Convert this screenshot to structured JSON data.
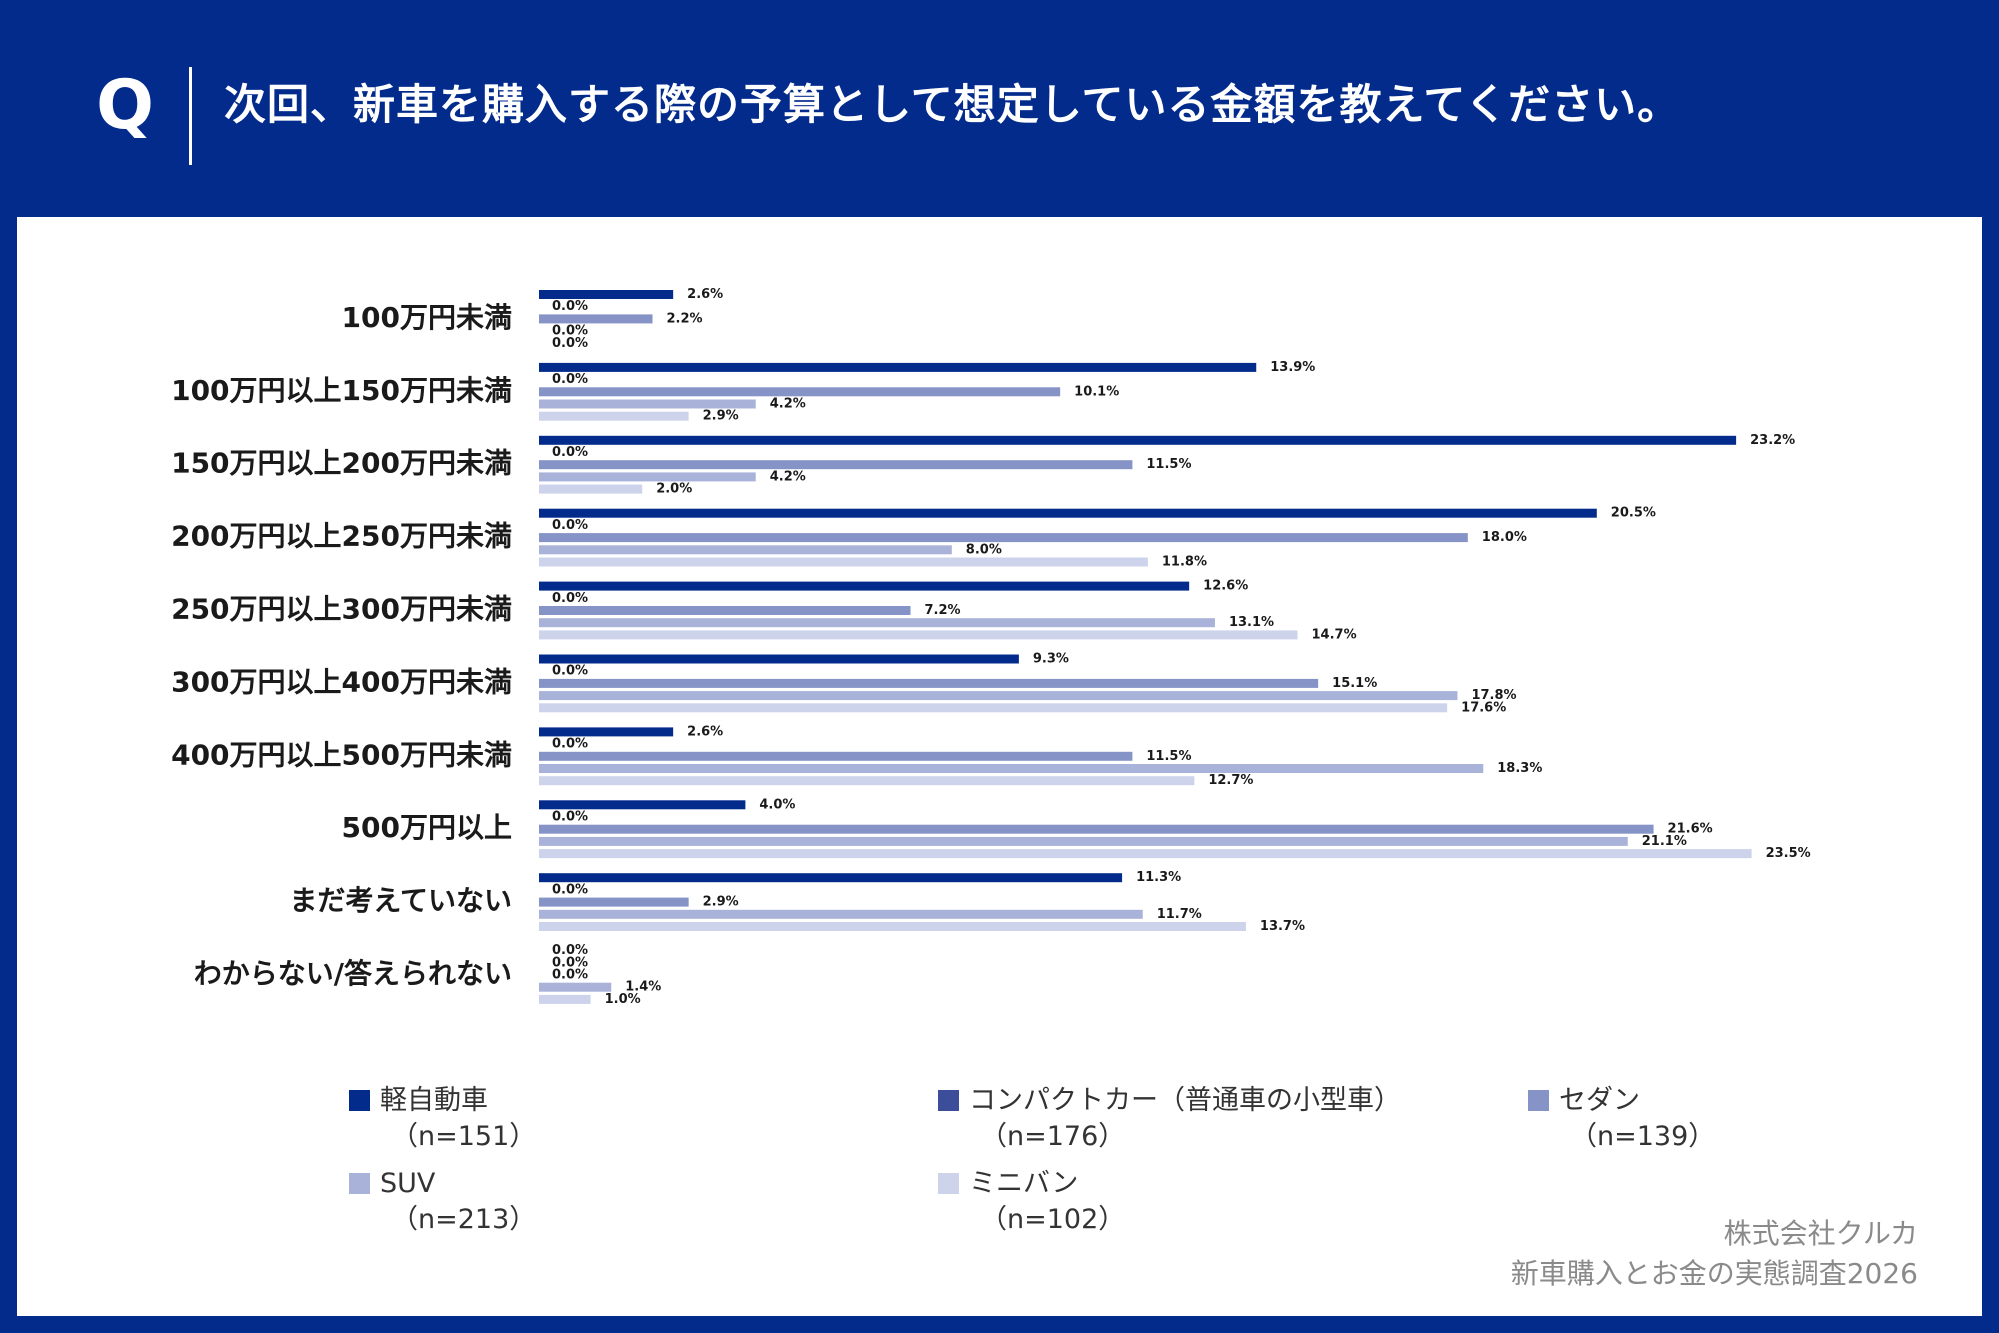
{
  "header": {
    "q_mark": "Q",
    "question": "次回、新車を購入する際の予算として想定している金額を教えてください。"
  },
  "chart_data": {
    "type": "bar",
    "orientation": "horizontal",
    "categories": [
      "100万円未満",
      "100万円以上150万円未満",
      "150万円以上200万円未満",
      "200万円以上250万円未満",
      "250万円以上300万円未満",
      "300万円以上400万円未満",
      "400万円以上500万円未満",
      "500万円以上",
      "まだ考えていない",
      "わからない/答えられない"
    ],
    "series": [
      {
        "name": "軽自動車",
        "n": "（n=151）",
        "color": "#032b8c",
        "values": [
          2.6,
          13.9,
          23.2,
          20.5,
          12.6,
          9.3,
          2.6,
          4.0,
          11.3,
          0.0
        ]
      },
      {
        "name": "コンパクトカー（普通車の小型車）",
        "n": "（n=176）",
        "color": "#3c4e9a",
        "values": [
          0.0,
          0.0,
          0.0,
          0.0,
          0.0,
          0.0,
          0.0,
          0.0,
          0.0,
          0.0
        ]
      },
      {
        "name": "セダン",
        "n": "（n=139）",
        "color": "#8593c6",
        "values": [
          2.2,
          10.1,
          11.5,
          18.0,
          7.2,
          15.1,
          11.5,
          21.6,
          2.9,
          0.0
        ]
      },
      {
        "name": "SUV",
        "n": "（n=213）",
        "color": "#a9b3d9",
        "values": [
          0.0,
          4.2,
          4.2,
          8.0,
          13.1,
          17.8,
          18.3,
          21.1,
          11.7,
          1.4
        ]
      },
      {
        "name": "ミニバン",
        "n": "（n=102）",
        "color": "#cdd3eb",
        "values": [
          0.0,
          2.9,
          2.0,
          11.8,
          14.7,
          17.6,
          12.7,
          23.5,
          13.7,
          1.0
        ]
      }
    ],
    "value_suffix": "%",
    "xlim": [
      0,
      25
    ],
    "grid": false,
    "legend_position": "bottom"
  },
  "source": {
    "line1": "株式会社クルカ",
    "line2": "新車購入とお金の実態調査2026"
  }
}
